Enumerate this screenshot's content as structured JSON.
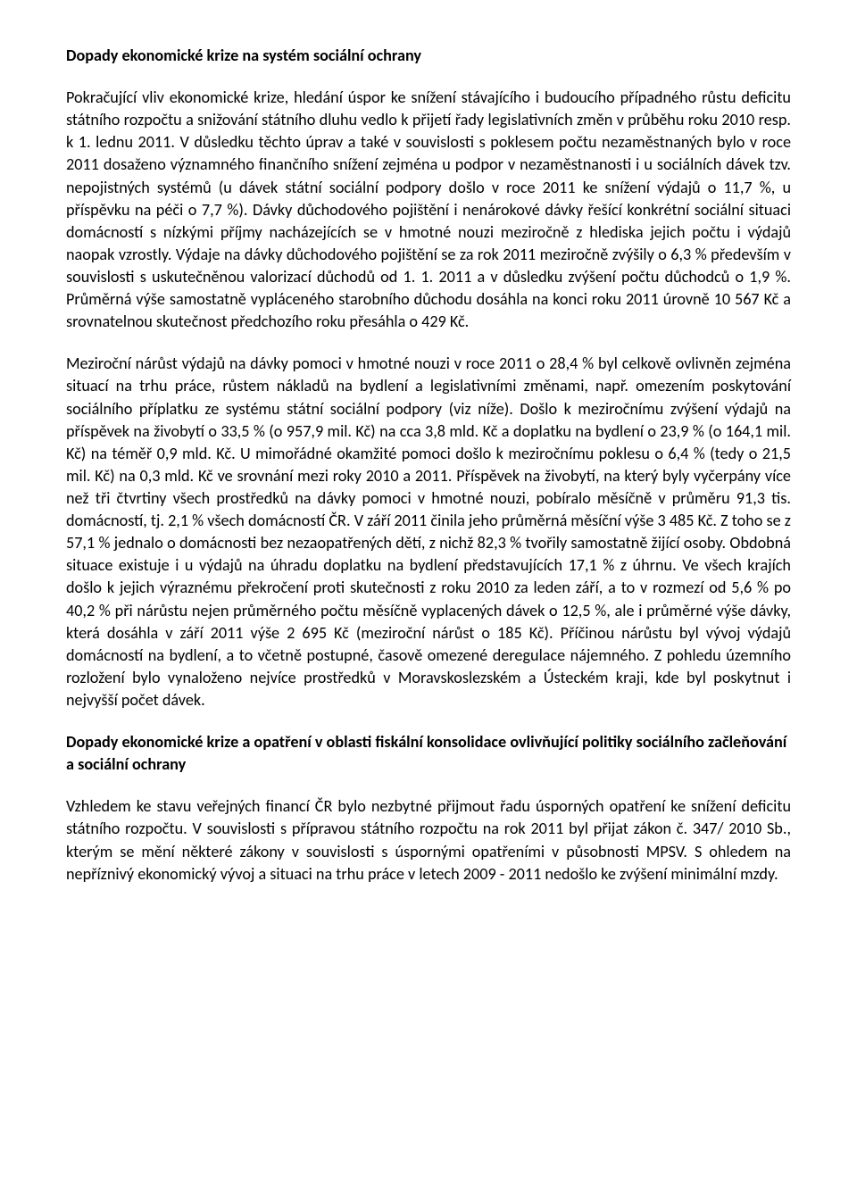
{
  "doc": {
    "title": "Dopady ekonomické krize na systém sociální ochrany",
    "p1": "Pokračující vliv ekonomické krize, hledání úspor ke snížení stávajícího i budoucího případného růstu deficitu státního rozpočtu a snižování státního dluhu vedlo k přijetí řady legislativních změn v průběhu roku 2010 resp. k 1. lednu 2011. V důsledku těchto úprav a také v souvislosti s poklesem počtu nezaměstnaných bylo v roce 2011 dosaženo významného finančního snížení zejména u podpor v nezaměstnanosti i u sociálních dávek tzv. nepojistných systémů (u dávek státní sociální podpory došlo v roce 2011 ke snížení výdajů o 11,7 %, u příspěvku na péči o 7,7 %). Dávky důchodového pojištění i nenárokové dávky řešící konkrétní sociální situaci domácností s nízkými příjmy nacházejících se v hmotné nouzi meziročně z hlediska jejich počtu i výdajů naopak vzrostly. Výdaje na dávky důchodového pojištění se za rok 2011 meziročně zvýšily o 6,3 % především v souvislosti s uskutečněnou valorizací důchodů od 1. 1. 2011 a v důsledku zvýšení počtu důchodců o 1,9 %. Průměrná výše samostatně vypláceného starobního důchodu dosáhla na konci roku 2011 úrovně 10 567 Kč a srovnatelnou skutečnost předchozího roku přesáhla o 429 Kč.",
    "p2": "Meziroční nárůst výdajů na dávky pomoci v hmotné nouzi v  roce 2011 o 28,4 % byl celkově ovlivněn zejména situací na trhu práce, růstem nákladů na bydlení a legislativními změnami, např. omezením poskytování sociálního příplatku ze systému státní sociální podpory (viz níže). Došlo k meziročnímu zvýšení výdajů na příspěvek na živobytí o 33,5 % (o 957,9 mil. Kč) na cca 3,8 mld. Kč a doplatku na bydlení o 23,9 % (o 164,1 mil. Kč) na téměř 0,9 mld. Kč. U mimořádné okamžité pomoci došlo k meziročnímu poklesu o 6,4 % (tedy o 21,5 mil. Kč) na 0,3 mld. Kč ve srovnání mezi roky 2010 a 2011. Příspěvek na živobytí, na který byly vyčerpány více než tři čtvrtiny všech prostředků na dávky pomoci v hmotné nouzi, pobíralo měsíčně v průměru 91,3 tis. domácností, tj. 2,1 % všech domácností ČR. V září 2011 činila jeho průměrná měsíční výše 3 485 Kč. Z toho se z  57,1 % jednalo o domácnosti bez nezaopatřených dětí, z nichž 82,3 % tvořily samostatně žijící osoby. Obdobná situace existuje i u výdajů na úhradu doplatku na bydlení představujících 17,1 % z úhrnu. Ve všech krajích došlo k jejich výraznému překročení proti skutečnosti z roku 2010 za leden září, a to v rozmezí od 5,6 % po 40,2 % při nárůstu nejen průměrného počtu měsíčně vyplacených dávek o 12,5 %, ale i průměrné výše dávky, která dosáhla v září 2011 výše 2 695 Kč (meziroční nárůst o 185 Kč). Příčinou nárůstu byl vývoj výdajů domácností na bydlení, a to včetně postupné, časově omezené deregulace nájemného.  Z pohledu územního rozložení bylo vynaloženo nejvíce prostředků v Moravskoslezském a Ústeckém kraji, kde byl poskytnut i nejvyšší počet dávek.",
    "h2": "Dopady ekonomické krize a opatření v oblasti fiskální konsolidace ovlivňující politiky sociálního začleňování a sociální ochrany",
    "p3": "Vzhledem ke stavu veřejných financí ČR bylo nezbytné přijmout řadu úsporných opatření ke snížení deficitu státního rozpočtu. V souvislosti s přípravou státního rozpočtu na rok 2011 byl přijat zákon č. 347/ 2010 Sb., kterým se mění některé zákony v souvislosti s úspornými opatřeními v působnosti MPSV. S ohledem na nepříznivý ekonomický vývoj a situaci na trhu práce v letech 2009 - 2011 nedošlo ke zvýšení minimální mzdy."
  }
}
